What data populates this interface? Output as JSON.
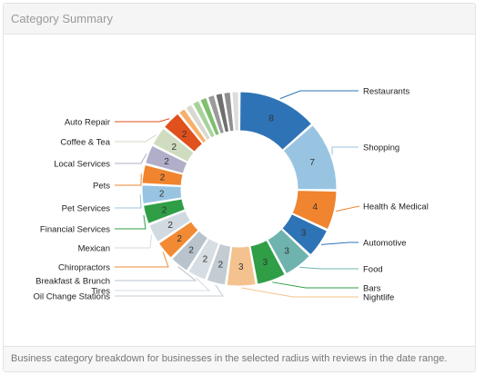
{
  "panel": {
    "title": "Category Summary",
    "footnote": "Business category breakdown for businesses in the selected radius with reviews in the date range."
  },
  "chart_data": {
    "type": "pie",
    "variant": "donut",
    "title": "",
    "slices": [
      {
        "label": "Restaurants",
        "value": 8,
        "color": "#2e73b6",
        "labeled": true,
        "side": "right"
      },
      {
        "label": "Shopping",
        "value": 7,
        "color": "#98c4e2",
        "labeled": true,
        "side": "right"
      },
      {
        "label": "Health & Medical",
        "value": 4,
        "color": "#f0842f",
        "labeled": true,
        "side": "right"
      },
      {
        "label": "Automotive",
        "value": 3,
        "color": "#2e73b6",
        "labeled": true,
        "side": "right"
      },
      {
        "label": "Food",
        "value": 3,
        "color": "#6fb3ae",
        "labeled": true,
        "side": "right"
      },
      {
        "label": "Bars",
        "value": 3,
        "color": "#2f9e47",
        "labeled": true,
        "side": "right"
      },
      {
        "label": "Nightlife",
        "value": 3,
        "color": "#f4c28e",
        "labeled": true,
        "side": "right"
      },
      {
        "label": "Oil Change Stations",
        "value": 2,
        "color": "#c3ccd3",
        "labeled": true,
        "side": "left"
      },
      {
        "label": "Tires",
        "value": 2,
        "color": "#d6dde3",
        "labeled": true,
        "side": "left"
      },
      {
        "label": "Breakfast & Brunch",
        "value": 2,
        "color": "#b9c3cb",
        "labeled": true,
        "side": "left"
      },
      {
        "label": "Chiropractors",
        "value": 2,
        "color": "#f28a33",
        "labeled": true,
        "side": "left"
      },
      {
        "label": "Mexican",
        "value": 2,
        "color": "#d2dae1",
        "labeled": true,
        "side": "left"
      },
      {
        "label": "Financial Services",
        "value": 2,
        "color": "#2f9e47",
        "labeled": true,
        "side": "left"
      },
      {
        "label": "Pet Services",
        "value": 2,
        "color": "#98c4e2",
        "labeled": true,
        "side": "left"
      },
      {
        "label": "Pets",
        "value": 2,
        "color": "#f0842f",
        "labeled": true,
        "side": "left"
      },
      {
        "label": "Local Services",
        "value": 2,
        "color": "#b0aec8",
        "labeled": true,
        "side": "left"
      },
      {
        "label": "Coffee & Tea",
        "value": 2,
        "color": "#cfdcc0",
        "labeled": true,
        "side": "left"
      },
      {
        "label": "Auto Repair",
        "value": 2,
        "color": "#e0511d",
        "labeled": true,
        "side": "left"
      },
      {
        "label": "",
        "value": 0.8,
        "color": "#f6b06a",
        "labeled": false
      },
      {
        "label": "",
        "value": 0.8,
        "color": "#d9d9cf",
        "labeled": false
      },
      {
        "label": "",
        "value": 0.8,
        "color": "#a6d39a",
        "labeled": false
      },
      {
        "label": "",
        "value": 0.8,
        "color": "#7fbf6e",
        "labeled": false
      },
      {
        "label": "",
        "value": 0.8,
        "color": "#9a9a9a",
        "labeled": false
      },
      {
        "label": "",
        "value": 0.8,
        "color": "#6f6f6f",
        "labeled": false
      },
      {
        "label": "",
        "value": 0.8,
        "color": "#8f8f8f",
        "labeled": false
      },
      {
        "label": "",
        "value": 0.8,
        "color": "#dcdcdc",
        "labeled": false
      }
    ]
  }
}
